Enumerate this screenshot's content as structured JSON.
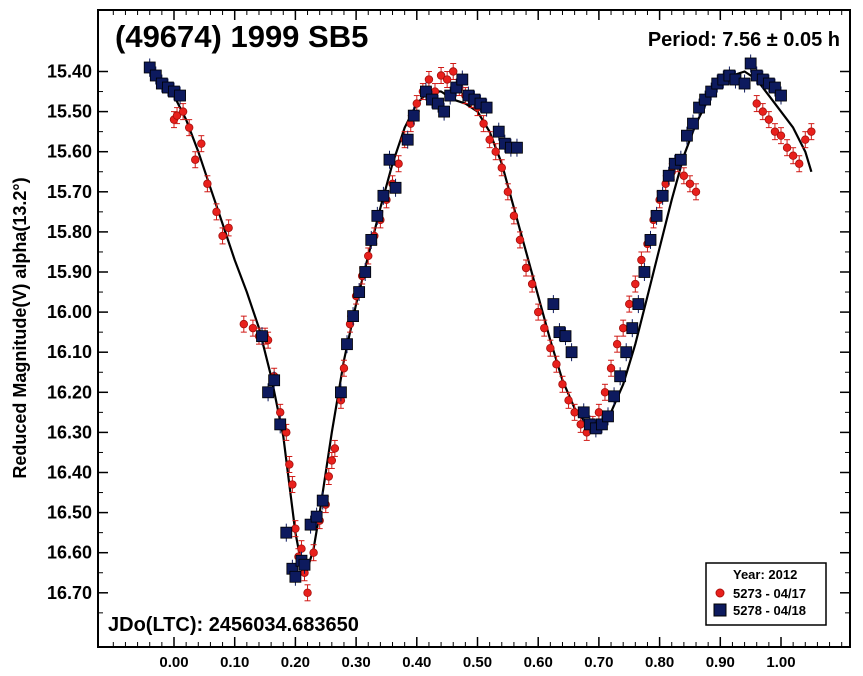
{
  "chart_data": {
    "type": "scatter",
    "title": "(49674) 1999 SB5",
    "period_label": "Period: 7.56 ± 0.05 h",
    "epoch_label": "JDo(LTC): 2456034.683650",
    "ylabel": "Reduced Magnitude(V) alpha(13.2°)",
    "xlabel": "",
    "xlim": [
      -0.13,
      1.13
    ],
    "ylim": [
      15.32,
      16.79
    ],
    "y_inverted": true,
    "x_ticks": [
      "0.00",
      "0.10",
      "0.20",
      "0.30",
      "0.40",
      "0.50",
      "0.60",
      "0.70",
      "0.80",
      "0.90",
      "1.00"
    ],
    "y_ticks": [
      "15.40",
      "15.50",
      "15.60",
      "15.70",
      "15.80",
      "15.90",
      "16.00",
      "16.10",
      "16.20",
      "16.30",
      "16.40",
      "16.50",
      "16.60",
      "16.70"
    ],
    "legend": {
      "title": "Year: 2012",
      "position": "bottom-right",
      "entries": [
        "5273 - 04/17",
        "5278 - 04/18"
      ]
    },
    "colors": {
      "series1": "#e8201c",
      "series2": "#0d1a5e",
      "fit": "#000000"
    },
    "series": [
      {
        "name": "5273 - 04/17",
        "marker": "circle",
        "x": [
          0.0,
          0.005,
          0.015,
          0.025,
          0.035,
          0.045,
          0.055,
          0.07,
          0.08,
          0.09,
          0.115,
          0.13,
          0.14,
          0.15,
          0.155,
          0.165,
          0.175,
          0.185,
          0.19,
          0.195,
          0.2,
          0.205,
          0.21,
          0.215,
          0.22,
          0.23,
          0.24,
          0.25,
          0.255,
          0.26,
          0.265,
          0.275,
          0.28,
          0.29,
          0.3,
          0.31,
          0.32,
          0.33,
          0.34,
          0.35,
          0.36,
          0.37,
          0.38,
          0.39,
          0.4,
          0.41,
          0.42,
          0.43,
          0.44,
          0.45,
          0.46,
          0.47,
          0.48,
          0.49,
          0.5,
          0.51,
          0.52,
          0.53,
          0.54,
          0.55,
          0.56,
          0.57,
          0.58,
          0.59,
          0.6,
          0.61,
          0.62,
          0.63,
          0.64,
          0.65,
          0.66,
          0.67,
          0.68,
          0.69,
          0.7,
          0.71,
          0.72,
          0.73,
          0.74,
          0.75,
          0.76,
          0.77,
          0.78,
          0.79,
          0.8,
          0.81,
          0.82,
          0.83,
          0.84,
          0.85,
          0.86,
          0.96,
          0.97,
          0.98,
          0.99,
          1.0,
          1.01,
          1.02,
          1.03,
          1.04,
          1.05
        ],
        "y": [
          15.52,
          15.51,
          15.5,
          15.54,
          15.62,
          15.58,
          15.68,
          15.75,
          15.81,
          15.79,
          16.03,
          16.04,
          16.06,
          16.06,
          16.07,
          16.16,
          16.25,
          16.3,
          16.38,
          16.43,
          16.54,
          16.61,
          16.59,
          16.65,
          16.7,
          16.6,
          16.52,
          16.48,
          16.41,
          16.37,
          16.34,
          16.22,
          16.14,
          16.03,
          15.96,
          15.91,
          15.86,
          15.81,
          15.77,
          15.72,
          15.68,
          15.63,
          15.57,
          15.53,
          15.48,
          15.45,
          15.42,
          15.45,
          15.41,
          15.42,
          15.4,
          15.44,
          15.46,
          15.47,
          15.49,
          15.53,
          15.57,
          15.6,
          15.64,
          15.7,
          15.76,
          15.82,
          15.89,
          15.93,
          16.0,
          16.04,
          16.09,
          16.13,
          16.18,
          16.22,
          16.25,
          16.28,
          16.3,
          16.28,
          16.25,
          16.2,
          16.14,
          16.08,
          16.04,
          15.98,
          15.93,
          15.87,
          15.83,
          15.77,
          15.72,
          15.68,
          15.65,
          15.63,
          15.66,
          15.68,
          15.7,
          15.48,
          15.5,
          15.52,
          15.55,
          15.56,
          15.59,
          15.61,
          15.63,
          15.57,
          15.55
        ],
        "error_bars": true
      },
      {
        "name": "5278 - 04/18",
        "marker": "square",
        "x": [
          -0.04,
          -0.03,
          -0.02,
          -0.01,
          0.0,
          0.01,
          0.145,
          0.155,
          0.165,
          0.175,
          0.185,
          0.195,
          0.2,
          0.21,
          0.215,
          0.225,
          0.235,
          0.245,
          0.275,
          0.285,
          0.295,
          0.305,
          0.315,
          0.325,
          0.335,
          0.345,
          0.355,
          0.365,
          0.385,
          0.395,
          0.415,
          0.425,
          0.435,
          0.445,
          0.455,
          0.465,
          0.475,
          0.485,
          0.495,
          0.505,
          0.515,
          0.535,
          0.545,
          0.555,
          0.565,
          0.625,
          0.635,
          0.645,
          0.655,
          0.675,
          0.685,
          0.695,
          0.705,
          0.715,
          0.725,
          0.735,
          0.745,
          0.755,
          0.765,
          0.775,
          0.785,
          0.795,
          0.805,
          0.815,
          0.825,
          0.835,
          0.845,
          0.855,
          0.865,
          0.875,
          0.885,
          0.895,
          0.905,
          0.915,
          0.925,
          0.94,
          0.95,
          0.96,
          0.97,
          0.98,
          0.99,
          1.0
        ],
        "y": [
          15.39,
          15.41,
          15.43,
          15.44,
          15.45,
          15.46,
          16.06,
          16.2,
          16.17,
          16.28,
          16.55,
          16.64,
          16.66,
          16.62,
          16.63,
          16.53,
          16.51,
          16.47,
          16.2,
          16.08,
          16.01,
          15.95,
          15.9,
          15.82,
          15.76,
          15.71,
          15.62,
          15.69,
          15.57,
          15.51,
          15.45,
          15.47,
          15.48,
          15.5,
          15.46,
          15.44,
          15.42,
          15.46,
          15.47,
          15.48,
          15.49,
          15.55,
          15.58,
          15.59,
          15.59,
          15.98,
          16.05,
          16.06,
          16.1,
          16.25,
          16.28,
          16.29,
          16.28,
          16.26,
          16.21,
          16.16,
          16.1,
          16.04,
          15.98,
          15.9,
          15.82,
          15.76,
          15.71,
          15.66,
          15.63,
          15.62,
          15.56,
          15.53,
          15.49,
          15.47,
          15.45,
          15.43,
          15.42,
          15.41,
          15.42,
          15.43,
          15.38,
          15.41,
          15.42,
          15.43,
          15.44,
          15.46
        ],
        "error_bars": true
      }
    ],
    "fit_curve": {
      "x": [
        -0.04,
        -0.02,
        0.0,
        0.02,
        0.04,
        0.06,
        0.08,
        0.1,
        0.12,
        0.14,
        0.16,
        0.18,
        0.2,
        0.21,
        0.22,
        0.23,
        0.24,
        0.26,
        0.28,
        0.3,
        0.32,
        0.34,
        0.36,
        0.38,
        0.4,
        0.42,
        0.44,
        0.46,
        0.48,
        0.5,
        0.52,
        0.54,
        0.56,
        0.58,
        0.6,
        0.62,
        0.64,
        0.66,
        0.68,
        0.7,
        0.72,
        0.74,
        0.76,
        0.78,
        0.8,
        0.82,
        0.84,
        0.86,
        0.88,
        0.9,
        0.92,
        0.94,
        0.96,
        0.98,
        1.0,
        1.02,
        1.04,
        1.05
      ],
      "y": [
        15.41,
        15.43,
        15.46,
        15.52,
        15.6,
        15.69,
        15.78,
        15.87,
        15.95,
        16.04,
        16.16,
        16.31,
        16.55,
        16.63,
        16.64,
        16.59,
        16.5,
        16.3,
        16.12,
        15.98,
        15.86,
        15.74,
        15.63,
        15.54,
        15.48,
        15.45,
        15.45,
        15.47,
        15.48,
        15.5,
        15.55,
        15.63,
        15.74,
        15.85,
        15.96,
        16.07,
        16.17,
        16.24,
        16.28,
        16.28,
        16.25,
        16.18,
        16.08,
        15.96,
        15.84,
        15.72,
        15.61,
        15.53,
        15.47,
        15.43,
        15.41,
        15.4,
        15.42,
        15.46,
        15.5,
        15.54,
        15.6,
        15.65
      ]
    },
    "grid": false
  }
}
